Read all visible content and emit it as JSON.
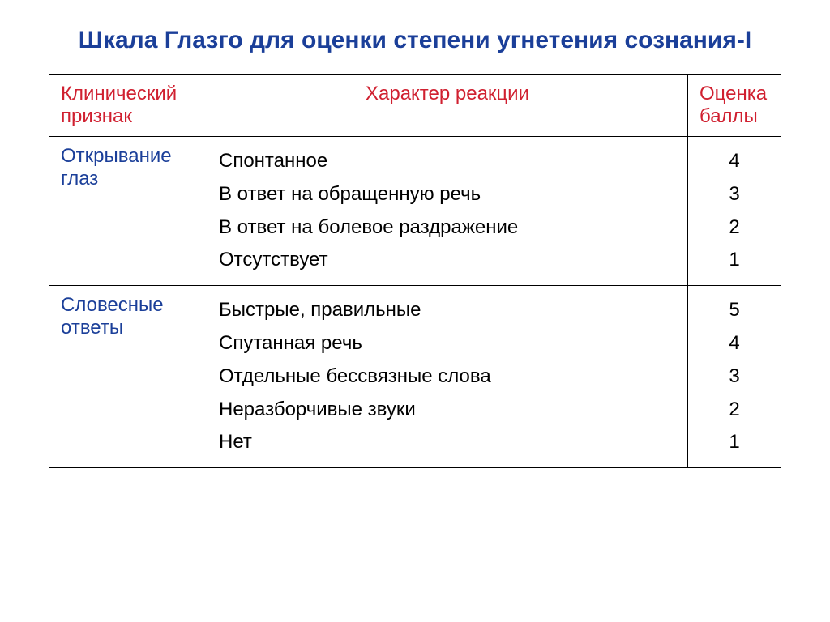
{
  "title": "Шкала Глазго для оценки степени угнетения сознания-I",
  "table": {
    "headers": {
      "sign": "Клинический признак",
      "reaction": "Характер реакции",
      "score": "Оценка баллы"
    },
    "rows": [
      {
        "sign": "Открывание глаз",
        "reactions": [
          "Спонтанное",
          "В ответ на обращенную речь",
          "В ответ на болевое раздражение",
          "Отсутствует"
        ],
        "scores": [
          "4",
          "3",
          "2",
          "1"
        ]
      },
      {
        "sign": "Словесные ответы",
        "reactions": [
          "Быстрые, правильные",
          "Спутанная речь",
          "Отдельные бессвязные слова",
          "Неразборчивые звуки",
          "Нет"
        ],
        "scores": [
          "5",
          "4",
          "3",
          "2",
          "1"
        ]
      }
    ]
  },
  "colors": {
    "title": "#1b3f99",
    "header_text": "#d02030",
    "sign_text": "#1b3f99",
    "body_text": "#000000",
    "border": "#000000",
    "background": "#ffffff"
  },
  "typography": {
    "title_fontsize": 30,
    "table_fontsize": 24,
    "font_family": "Arial"
  },
  "layout": {
    "col_sign_width": 195,
    "col_score_width": 115,
    "line_height": 1.7
  }
}
